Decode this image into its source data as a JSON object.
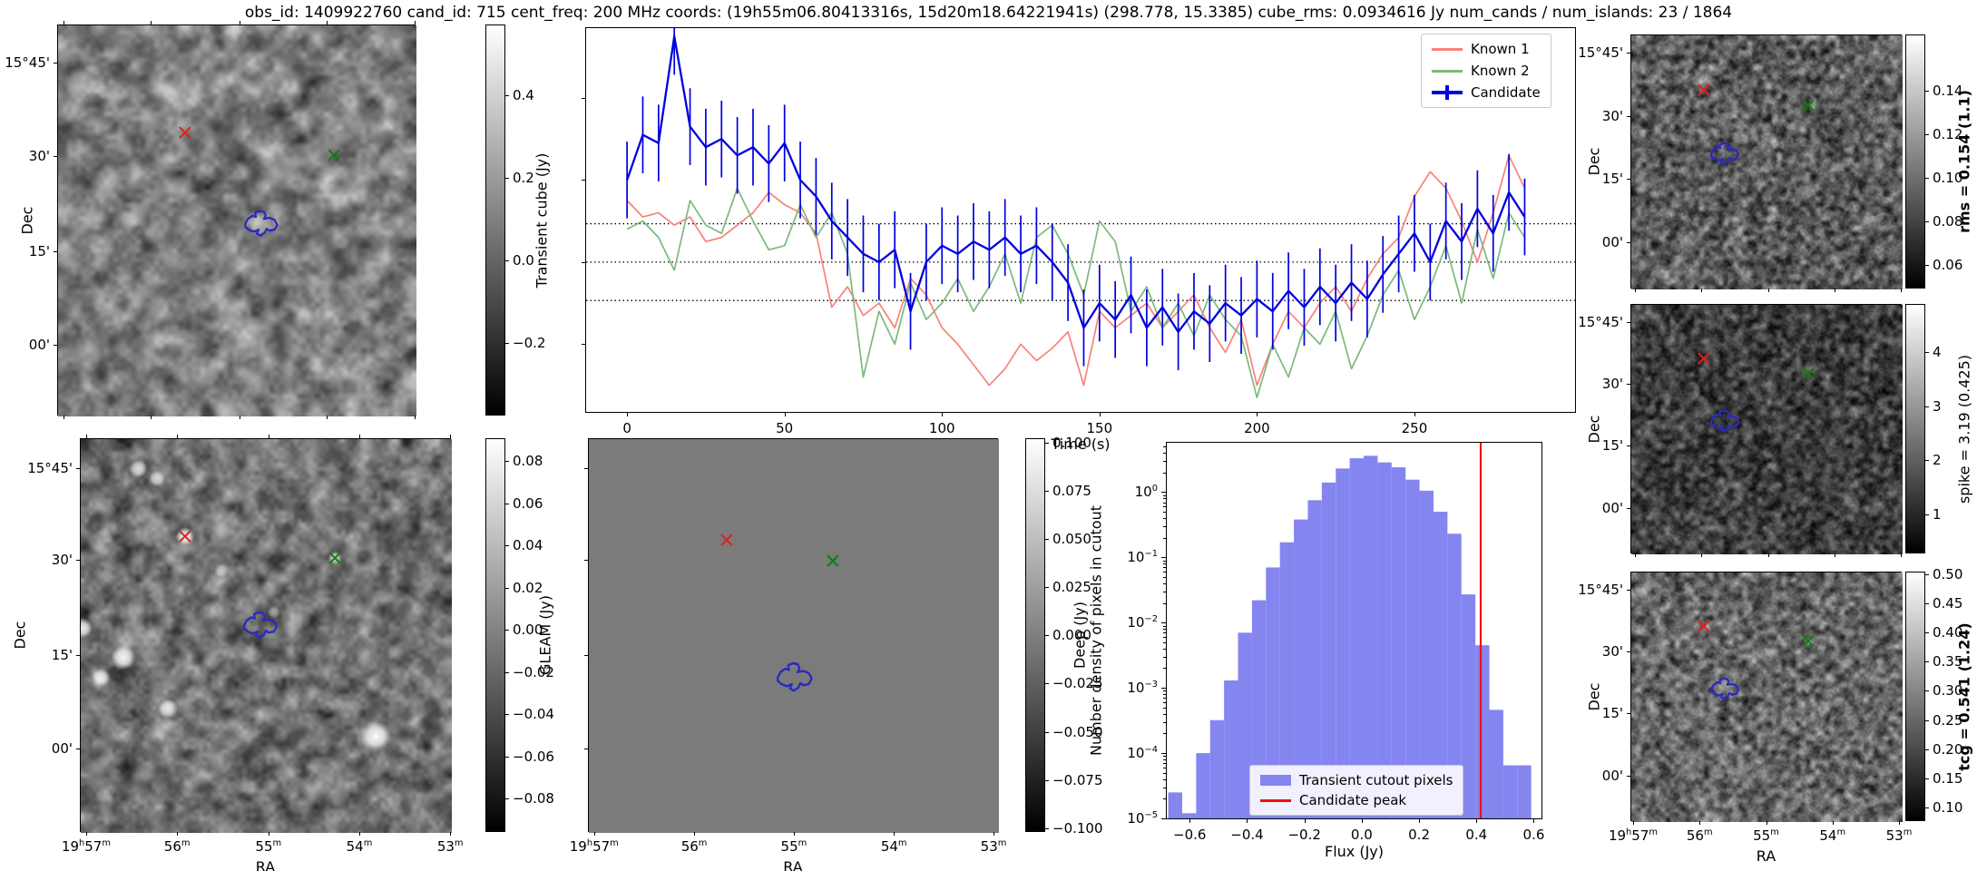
{
  "title": "obs_id: 1409922760 cand_id: 715 cent_freq: 200 MHz coords: (19h55m06.80413316s, 15d20m18.64221941s) (298.778, 15.3385) cube_rms: 0.0934616 Jy num_cands / num_islands: 23 / 1864",
  "colors": {
    "known1": "#f8827a",
    "known2": "#7cb97c",
    "candidate": "#0000dd",
    "hist_bar": "#8585f0",
    "peak_line": "#ee1111",
    "red_marker": "#dd2020",
    "green_marker": "#0e7d0e",
    "contour": "#2a2ac0",
    "dotted_line": "#000000"
  },
  "axis": {
    "dec_label": "Dec",
    "ra_label": "RA",
    "dec_ticks": [
      "15°45'",
      "30'",
      "15'",
      "00'"
    ],
    "ra_ticks": [
      "19h57m",
      "56m",
      "55m",
      "54m",
      "53m"
    ]
  },
  "colorbars": {
    "transient": {
      "label": "Transient cube (Jy)",
      "bold": false,
      "ticks": [
        "0.4",
        "0.2",
        "0.0",
        "−0.2"
      ]
    },
    "gleam": {
      "label": "GLEAM (Jy)",
      "bold": false,
      "ticks": [
        "0.08",
        "0.06",
        "0.04",
        "0.02",
        "0.00",
        "−0.02",
        "−0.04",
        "−0.06",
        "−0.08"
      ]
    },
    "deep": {
      "label": "Deep (Jy)",
      "bold": false,
      "ticks": [
        "0.100",
        "0.075",
        "0.050",
        "0.025",
        "0.000",
        "−0.025",
        "−0.050",
        "−0.075",
        "−0.100"
      ]
    },
    "rms": {
      "label": "rms = 0.154 (1.1)",
      "bold": true,
      "ticks": [
        "0.14",
        "0.12",
        "0.10",
        "0.08",
        "0.06"
      ]
    },
    "spike": {
      "label": "spike = 3.19 (0.425)",
      "bold": false,
      "ticks": [
        "4",
        "3",
        "2",
        "1"
      ]
    },
    "tcg": {
      "label": "tcg = 0.541 (1.24)",
      "bold": true,
      "ticks": [
        "0.50",
        "0.45",
        "0.40",
        "0.35",
        "0.30",
        "0.25",
        "0.20",
        "0.15",
        "0.10"
      ]
    }
  },
  "markers": {
    "transient": {
      "red": [
        0.354,
        0.274
      ],
      "green": [
        0.77,
        0.332
      ],
      "contour": [
        0.567,
        0.506
      ]
    },
    "gleam": {
      "red": [
        0.281,
        0.247
      ],
      "green": [
        0.685,
        0.302
      ],
      "contour": [
        0.484,
        0.472
      ]
    },
    "deep": {
      "red": [
        0.336,
        0.256
      ],
      "green": [
        0.595,
        0.309
      ],
      "contour": [
        0.502,
        0.604
      ]
    },
    "right": {
      "red": [
        0.267,
        0.215
      ],
      "green": [
        0.652,
        0.275
      ],
      "contour": [
        0.345,
        0.465
      ]
    }
  },
  "chart_data": [
    {
      "type": "line",
      "title": "",
      "xlabel": "Time (s)",
      "ylabel": "",
      "xlim": [
        -13,
        301
      ],
      "ylim": [
        -0.365,
        0.57
      ],
      "xticks": [
        0,
        50,
        100,
        150,
        200,
        250
      ],
      "ytick_values_unlabeled": [
        0.4,
        0.2,
        0.0,
        -0.2
      ],
      "dotted_hlines": [
        0.0935,
        0.0,
        -0.0935
      ],
      "legend_position": "upper right",
      "x": [
        0,
        5,
        10,
        15,
        20,
        25,
        30,
        35,
        40,
        45,
        50,
        55,
        60,
        65,
        70,
        75,
        80,
        85,
        90,
        95,
        100,
        105,
        110,
        115,
        120,
        125,
        130,
        135,
        140,
        145,
        150,
        155,
        160,
        165,
        170,
        175,
        180,
        185,
        190,
        195,
        200,
        205,
        210,
        215,
        220,
        225,
        230,
        235,
        240,
        245,
        250,
        255,
        260,
        265,
        270,
        275,
        280,
        285
      ],
      "series": [
        {
          "name": "Known 1",
          "values": [
            0.15,
            0.11,
            0.12,
            0.09,
            0.11,
            0.05,
            0.06,
            0.09,
            0.12,
            0.17,
            0.14,
            0.12,
            0.07,
            -0.11,
            -0.06,
            -0.13,
            -0.1,
            -0.16,
            -0.04,
            -0.08,
            -0.16,
            -0.2,
            -0.25,
            -0.3,
            -0.26,
            -0.2,
            -0.24,
            -0.21,
            -0.17,
            -0.3,
            -0.12,
            -0.16,
            -0.13,
            -0.1,
            -0.16,
            -0.12,
            -0.08,
            -0.16,
            -0.22,
            -0.14,
            -0.3,
            -0.2,
            -0.12,
            -0.16,
            -0.1,
            -0.06,
            -0.12,
            -0.04,
            0.02,
            0.06,
            0.16,
            0.22,
            0.18,
            0.1,
            0.0,
            0.12,
            0.26,
            0.18
          ]
        },
        {
          "name": "Known 2",
          "values": [
            0.08,
            0.1,
            0.06,
            -0.02,
            0.15,
            0.09,
            0.07,
            0.18,
            0.1,
            0.03,
            0.04,
            0.14,
            0.06,
            0.12,
            0.02,
            -0.28,
            -0.12,
            -0.2,
            -0.05,
            -0.14,
            -0.1,
            -0.04,
            -0.12,
            -0.06,
            0.02,
            -0.1,
            0.06,
            0.09,
            0.02,
            -0.08,
            0.1,
            0.05,
            -0.12,
            -0.06,
            -0.16,
            -0.1,
            -0.18,
            -0.08,
            -0.14,
            -0.18,
            -0.33,
            -0.2,
            -0.28,
            -0.16,
            -0.2,
            -0.12,
            -0.26,
            -0.18,
            -0.08,
            -0.02,
            -0.14,
            -0.06,
            0.04,
            -0.1,
            0.08,
            -0.04,
            0.12,
            0.06
          ]
        },
        {
          "name": "Candidate",
          "yerr": 0.0935,
          "values": [
            0.2,
            0.31,
            0.29,
            0.55,
            0.33,
            0.28,
            0.3,
            0.26,
            0.28,
            0.24,
            0.29,
            0.2,
            0.16,
            0.1,
            0.06,
            0.02,
            0.0,
            0.03,
            -0.12,
            0.0,
            0.04,
            0.02,
            0.05,
            0.03,
            0.06,
            0.02,
            0.04,
            0.0,
            -0.05,
            -0.16,
            -0.1,
            -0.14,
            -0.08,
            -0.16,
            -0.11,
            -0.17,
            -0.12,
            -0.15,
            -0.1,
            -0.13,
            -0.09,
            -0.12,
            -0.07,
            -0.11,
            -0.06,
            -0.1,
            -0.05,
            -0.09,
            -0.03,
            0.02,
            0.07,
            0.0,
            0.1,
            0.05,
            0.13,
            0.07,
            0.17,
            0.11
          ]
        }
      ]
    },
    {
      "type": "bar",
      "title": "",
      "xlabel": "Flux (Jy)",
      "ylabel": "Number density of pixels in cutout",
      "yscale": "log",
      "xlim": [
        -0.68,
        0.627
      ],
      "ylim": [
        1e-05,
        5.7
      ],
      "xticks": [
        -0.6,
        -0.4,
        -0.2,
        0.0,
        0.2,
        0.4,
        0.6
      ],
      "ytick_exponents": [
        0,
        -1,
        -2,
        -3,
        -4,
        -5
      ],
      "bin_start": -0.675,
      "bin_width": 0.0487,
      "densities": [
        2.5e-05,
        1.2e-05,
        0.0001,
        0.00032,
        0.0013,
        0.007,
        0.022,
        0.07,
        0.17,
        0.38,
        0.75,
        1.4,
        2.3,
        3.3,
        3.6,
        2.85,
        2.4,
        1.55,
        1.05,
        0.5,
        0.23,
        0.027,
        0.0045,
        0.00046,
        6.5e-05,
        6.5e-05
      ],
      "bar_label": "Transient cutout pixels",
      "vline": {
        "label": "Candidate peak",
        "x": 0.415
      }
    }
  ]
}
